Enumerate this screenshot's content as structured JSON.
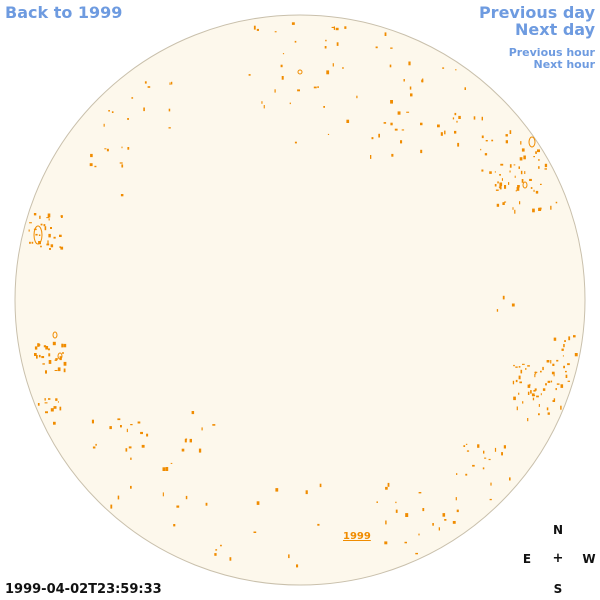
{
  "nav": {
    "back_label": "Back to 1999",
    "previous_day_label": "Previous day",
    "next_day_label": "Next day",
    "previous_hour_label": "Previous hour",
    "next_hour_label": "Next hour"
  },
  "timestamp": "1999-04-02T23:59:33",
  "compass": {
    "north": "N",
    "east": "E",
    "center": "+",
    "west": "W",
    "south": "S"
  },
  "year_label": "1999",
  "colors": {
    "disk_fill": "#fdf8ec",
    "disk_border": "#c9c0ac",
    "contour": "#f08c00",
    "link": "#6e9be0"
  }
}
